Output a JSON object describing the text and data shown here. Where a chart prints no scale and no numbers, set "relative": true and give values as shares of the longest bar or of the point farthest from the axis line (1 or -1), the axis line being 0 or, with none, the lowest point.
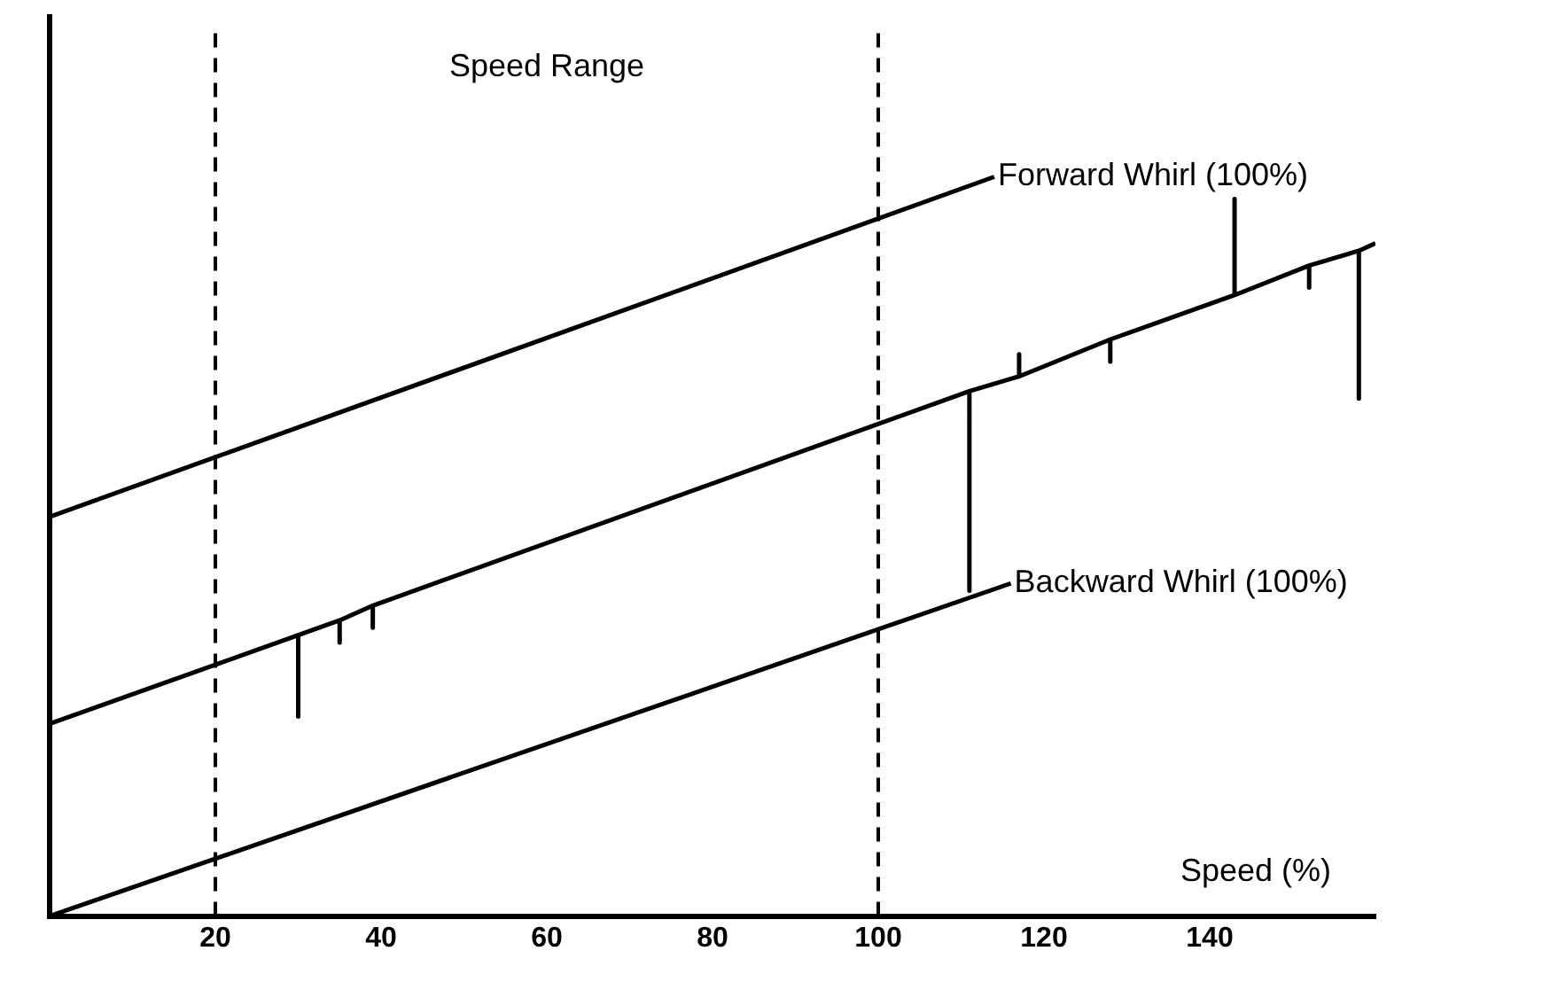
{
  "chart_data": {
    "type": "line",
    "relative": true,
    "xlabel": "Speed (%)",
    "xlim": [
      0,
      160
    ],
    "xticks": [
      20,
      40,
      60,
      80,
      100,
      120,
      140
    ],
    "tick_labels": "x",
    "grid": false,
    "legend": false,
    "marker": "none",
    "line_style": "solid",
    "annotations": [
      "Speed Range"
    ],
    "ref_lines": [
      {
        "axis": "x",
        "value": 20,
        "line_style": "dashed",
        "color": "#000000"
      },
      {
        "axis": "x",
        "value": 100,
        "line_style": "dashed",
        "color": "#000000"
      }
    ],
    "series": [
      {
        "name": "Forward Whirl (100%)",
        "color": "#000000",
        "x": [
          0,
          114
        ],
        "values": [
          0.54,
          1.0
        ]
      },
      {
        "color": "#000000",
        "x": [
          0,
          30,
          30,
          30,
          35,
          35,
          35,
          39,
          39,
          39,
          111,
          111,
          111,
          117,
          117,
          117,
          128,
          128,
          128,
          143,
          143,
          143,
          152,
          152,
          152,
          158,
          158,
          158,
          160
        ],
        "values": [
          0.26,
          0.38,
          0.27,
          0.38,
          0.4,
          0.37,
          0.4,
          0.42,
          0.39,
          0.42,
          0.71,
          0.44,
          0.71,
          0.73,
          0.76,
          0.73,
          0.78,
          0.75,
          0.78,
          0.84,
          0.97,
          0.84,
          0.88,
          0.85,
          0.88,
          0.9,
          0.7,
          0.9,
          0.91
        ]
      },
      {
        "name": "Backward Whirl (100%)",
        "color": "#000000",
        "x": [
          0,
          116
        ],
        "values": [
          0,
          0.45
        ]
      }
    ]
  }
}
